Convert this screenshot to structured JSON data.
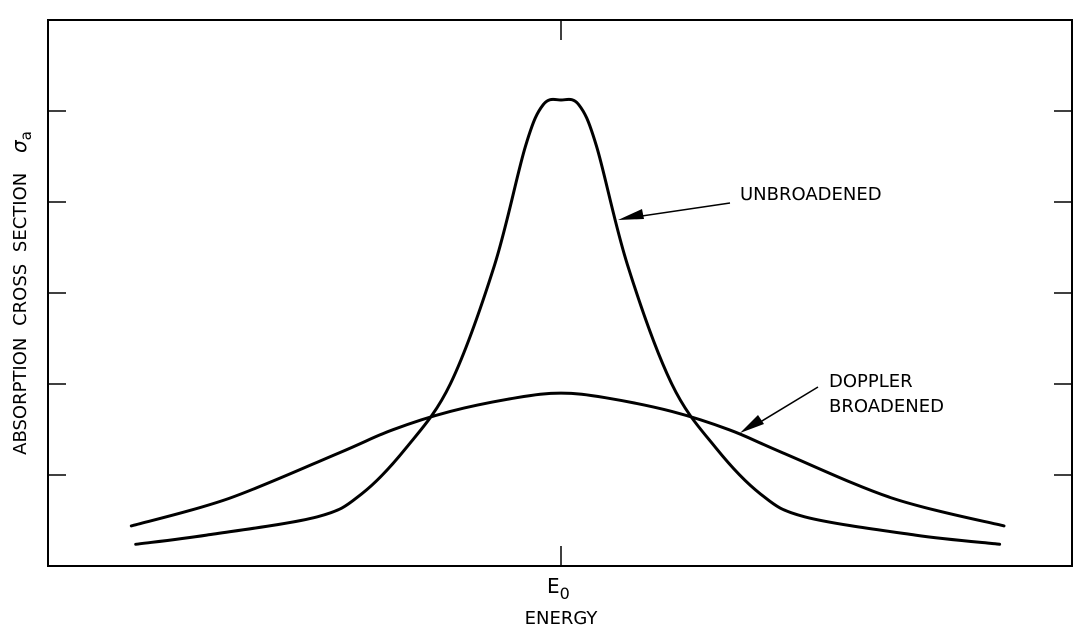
{
  "chart_data": {
    "type": "line",
    "title": "",
    "xlabel": "ENERGY",
    "ylabel_text": "ABSORPTION CROSS SECTION",
    "ylabel_symbol": "σ",
    "ylabel_subscript": "a",
    "x_tick_main": "E",
    "x_tick_sub": "0",
    "xlim": [
      -1,
      1
    ],
    "ylim": [
      0,
      1
    ],
    "grid": false,
    "series": [
      {
        "name": "UNBROADENED",
        "x": [
          -0.96,
          -0.8,
          -0.55,
          -0.45,
          -0.35,
          -0.25,
          -0.15,
          -0.08,
          -0.04,
          0,
          0.04,
          0.08,
          0.15,
          0.25,
          0.35,
          0.45,
          0.55,
          0.8,
          0.99
        ],
        "y": [
          0.03,
          0.05,
          0.09,
          0.14,
          0.24,
          0.38,
          0.64,
          0.9,
          0.99,
          1.0,
          0.99,
          0.9,
          0.64,
          0.38,
          0.24,
          0.14,
          0.09,
          0.05,
          0.03
        ]
      },
      {
        "name": "DOPPLER BROADENED",
        "x": [
          -0.97,
          -0.75,
          -0.5,
          -0.38,
          -0.25,
          -0.1,
          0,
          0.1,
          0.25,
          0.38,
          0.5,
          0.75,
          1.0
        ],
        "y": [
          0.07,
          0.13,
          0.23,
          0.28,
          0.32,
          0.35,
          0.36,
          0.35,
          0.32,
          0.28,
          0.23,
          0.13,
          0.07
        ]
      }
    ],
    "annotations": [
      {
        "text": "UNBROADENED",
        "points_to": "UNBROADENED"
      },
      {
        "text_lines": [
          "DOPPLER",
          "BROADENED"
        ],
        "points_to": "DOPPLER BROADENED"
      }
    ]
  }
}
